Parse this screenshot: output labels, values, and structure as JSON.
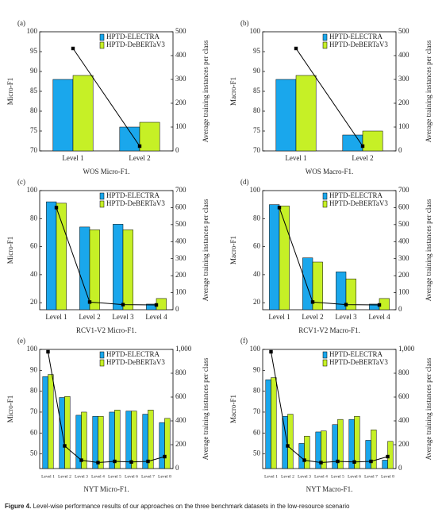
{
  "chart_data": [
    {
      "type": "bar",
      "panel_label": "(a)",
      "caption": "WOS Micro-F1.",
      "y_label": "Micro-F1",
      "y2_label": "Average training instances per class",
      "categories": [
        "Level 1",
        "Level 2"
      ],
      "series": [
        {
          "name": "HPTD-ELECTRA",
          "color": "#1aa7ec",
          "values": [
            88,
            76
          ]
        },
        {
          "name": "HPTD-DeBERTaV3",
          "color": "#c6f026",
          "values": [
            89,
            77.2
          ]
        },
        {
          "type": "line",
          "axis": "y2",
          "color": "#000000",
          "values": [
            430,
            20
          ]
        }
      ],
      "ylim": [
        70,
        100
      ],
      "yticks": [
        70,
        75,
        80,
        85,
        90,
        95,
        100
      ],
      "y2lim": [
        0,
        500
      ],
      "y2ticks": [
        0,
        100,
        200,
        300,
        400,
        500
      ],
      "legend": "upper right"
    },
    {
      "type": "bar",
      "panel_label": "(b)",
      "caption": "WOS Macro-F1.",
      "y_label": "Macro-F1",
      "y2_label": "Average training instances per class",
      "categories": [
        "Level 1",
        "Level 2"
      ],
      "series": [
        {
          "name": "HPTD-ELECTRA",
          "color": "#1aa7ec",
          "values": [
            88,
            74
          ]
        },
        {
          "name": "HPTD-DeBERTaV3",
          "color": "#c6f026",
          "values": [
            89,
            75
          ]
        },
        {
          "type": "line",
          "axis": "y2",
          "color": "#000000",
          "values": [
            430,
            20
          ]
        }
      ],
      "ylim": [
        70,
        100
      ],
      "yticks": [
        70,
        75,
        80,
        85,
        90,
        95,
        100
      ],
      "y2lim": [
        0,
        500
      ],
      "y2ticks": [
        0,
        100,
        200,
        300,
        400,
        500
      ],
      "legend": "upper right"
    },
    {
      "type": "bar",
      "panel_label": "(c)",
      "caption": "RCV1-V2 Micro-F1.",
      "y_label": "Micro-F1",
      "y2_label": "Average training instances per class",
      "categories": [
        "Level 1",
        "Level 2",
        "Level 3",
        "Level 4"
      ],
      "series": [
        {
          "name": "HPTD-ELECTRA",
          "color": "#1aa7ec",
          "values": [
            92,
            74,
            76,
            19
          ]
        },
        {
          "name": "HPTD-DeBERTaV3",
          "color": "#c6f026",
          "values": [
            91,
            72,
            72,
            23
          ]
        },
        {
          "type": "line",
          "axis": "y2",
          "color": "#000000",
          "values": [
            600,
            45,
            30,
            28
          ]
        }
      ],
      "ylim": [
        15,
        100
      ],
      "yticks": [
        20,
        40,
        60,
        80,
        100
      ],
      "y2lim": [
        0,
        700
      ],
      "y2ticks": [
        0,
        100,
        200,
        300,
        400,
        500,
        600,
        700
      ],
      "legend": "upper right"
    },
    {
      "type": "bar",
      "panel_label": "(d)",
      "caption": "RCV1-V2 Macro-F1.",
      "y_label": "Macro-F1",
      "y2_label": "Average training instances per class",
      "categories": [
        "Level 1",
        "Level 2",
        "Level 3",
        "Level 4"
      ],
      "series": [
        {
          "name": "HPTD-ELECTRA",
          "color": "#1aa7ec",
          "values": [
            90,
            52,
            42,
            19
          ]
        },
        {
          "name": "HPTD-DeBERTaV3",
          "color": "#c6f026",
          "values": [
            89,
            49,
            37,
            23
          ]
        },
        {
          "type": "line",
          "axis": "y2",
          "color": "#000000",
          "values": [
            600,
            45,
            30,
            28
          ]
        }
      ],
      "ylim": [
        15,
        100
      ],
      "yticks": [
        20,
        40,
        60,
        80,
        100
      ],
      "y2lim": [
        0,
        700
      ],
      "y2ticks": [
        0,
        100,
        200,
        300,
        400,
        500,
        600,
        700
      ],
      "legend": "upper right"
    },
    {
      "type": "bar",
      "panel_label": "(e)",
      "caption": "NYT Micro-F1.",
      "y_label": "Micro-F1",
      "y2_label": "Average training instances per class",
      "categories": [
        "Level 1",
        "Level 2",
        "Level 3",
        "Level 4",
        "Level 5",
        "Level 6",
        "Level 7",
        "Level 8"
      ],
      "series": [
        {
          "name": "HPTD-ELECTRA",
          "color": "#1aa7ec",
          "values": [
            87,
            77,
            68.5,
            68,
            70,
            70.5,
            69,
            65
          ]
        },
        {
          "name": "HPTD-DeBERTaV3",
          "color": "#c6f026",
          "values": [
            88,
            77.5,
            70,
            68,
            71,
            70.5,
            71,
            67
          ]
        },
        {
          "type": "line",
          "axis": "y2",
          "color": "#000000",
          "values": [
            980,
            190,
            70,
            50,
            60,
            55,
            60,
            100
          ]
        }
      ],
      "ylim": [
        43,
        100
      ],
      "yticks": [
        50,
        60,
        70,
        80,
        90,
        100
      ],
      "y2lim": [
        0,
        1000
      ],
      "y2ticks": [
        0,
        200,
        400,
        600,
        800,
        {
          "value": 1000,
          "label": "1,000"
        }
      ],
      "legend": "upper right"
    },
    {
      "type": "bar",
      "panel_label": "(f)",
      "caption": "NYT Macro-F1.",
      "y_label": "Macro-F1",
      "y2_label": "Average training instances per class",
      "categories": [
        "Level 1",
        "Level 2",
        "Level 3",
        "Level 4",
        "Level 5",
        "Level 6",
        "Level 7",
        "Level 8"
      ],
      "series": [
        {
          "name": "HPTD-ELECTRA",
          "color": "#1aa7ec",
          "values": [
            85.5,
            68,
            55,
            60.5,
            64,
            66.5,
            56.5,
            47
          ]
        },
        {
          "name": "HPTD-DeBERTaV3",
          "color": "#c6f026",
          "values": [
            86.5,
            69,
            58.5,
            61,
            66.5,
            68,
            61.5,
            56
          ]
        },
        {
          "type": "line",
          "axis": "y2",
          "color": "#000000",
          "values": [
            980,
            190,
            70,
            50,
            60,
            55,
            60,
            100
          ]
        }
      ],
      "ylim": [
        43,
        100
      ],
      "yticks": [
        50,
        60,
        70,
        80,
        90,
        100
      ],
      "y2lim": [
        0,
        1000
      ],
      "y2ticks": [
        0,
        200,
        400,
        600,
        800,
        {
          "value": 1000,
          "label": "1,000"
        }
      ],
      "legend": "upper right"
    }
  ],
  "figure_caption": {
    "label": "Figure 4.",
    "text": "Level-wise performance results of our approaches on the three benchmark datasets in the low-resource scenario"
  }
}
